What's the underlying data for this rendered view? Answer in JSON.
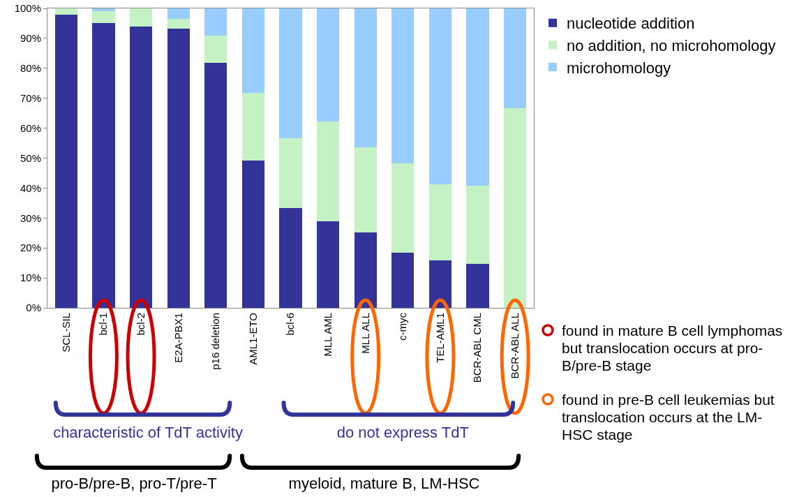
{
  "chart_data": {
    "type": "bar",
    "stacked": true,
    "categories": [
      "SCL-SIL",
      "bcl-1",
      "bcl-2",
      "E2A-PBX1",
      "p16 deletion",
      "AML1-ETO",
      "bcl-6",
      "MLL AML",
      "MLL ALL",
      "c-myc",
      "TEL-AML1",
      "BCR-ABL CML",
      "BCR-ABL ALL"
    ],
    "series": [
      {
        "name": "nucleotide addition",
        "color": "#333399",
        "values": [
          98,
          95,
          94,
          93.3,
          81.8,
          49.3,
          33.3,
          28.9,
          25.2,
          18.4,
          15.9,
          14.7,
          0
        ]
      },
      {
        "name": "no addition, no microhomology",
        "color": "#c4f2c4",
        "values": [
          2,
          4,
          6,
          3.3,
          9.1,
          22.4,
          23.3,
          33.3,
          28.4,
          29.9,
          25.4,
          26.1,
          66.7
        ]
      },
      {
        "name": "microhomology",
        "color": "#99ccff",
        "values": [
          0,
          1,
          0,
          3.4,
          9.1,
          28.3,
          43.4,
          37.8,
          46.4,
          51.7,
          58.7,
          59.2,
          33.3
        ]
      }
    ],
    "ylim": [
      0,
      100
    ],
    "yticks": [
      {
        "value": 0,
        "label": "0%"
      },
      {
        "value": 10,
        "label": "10%"
      },
      {
        "value": 20,
        "label": "20%"
      },
      {
        "value": 30,
        "label": "30%"
      },
      {
        "value": 40,
        "label": "40%"
      },
      {
        "value": 50,
        "label": "50%"
      },
      {
        "value": 60,
        "label": "60%"
      },
      {
        "value": 70,
        "label": "70%"
      },
      {
        "value": 80,
        "label": "80%"
      },
      {
        "value": 90,
        "label": "90%"
      },
      {
        "value": 100,
        "label": "100%"
      }
    ],
    "grid": false,
    "legend": "right",
    "annotations": [
      "characteristic of TdT activity",
      "do not express TdT",
      "pro-B/pre-B, pro-T/pre-T",
      "myeloid, mature B, LM-HSC",
      "found in mature B cell lymphomas but translocation occurs at pro-B/pre-B stage",
      "found in pre-B cell leukemias but translocation occurs at the LM-HSC stage"
    ]
  }
}
